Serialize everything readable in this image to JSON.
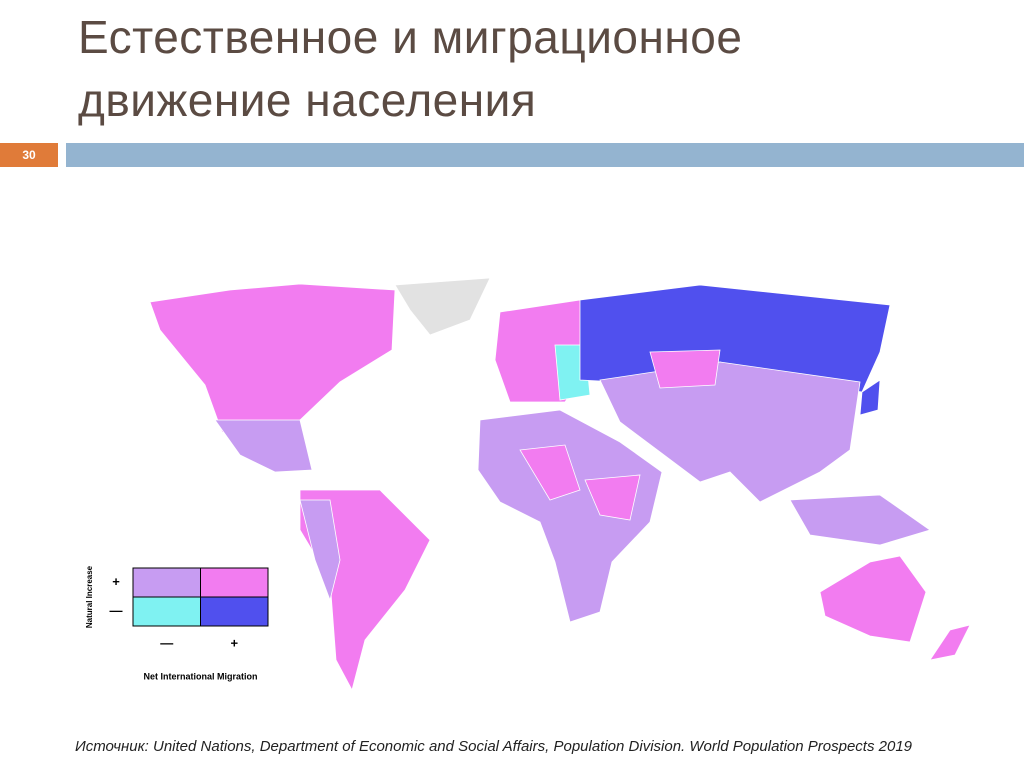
{
  "header": {
    "title": "Естественное и миграционное движение населения",
    "slide_number": "30"
  },
  "legend": {
    "y_label": "Natural Increase",
    "x_label": "Net International Migration",
    "rows": [
      "+",
      "—"
    ],
    "columns": [
      "—",
      "+"
    ],
    "cells": [
      [
        "#c79cf2",
        "#f27cf0"
      ],
      [
        "#7ff2f2",
        "#5050ee"
      ]
    ]
  },
  "footer": {
    "source": "Источник: United Nations, Department of Economic and Social Affairs, Population Division. World Population Prospects 2019"
  }
}
